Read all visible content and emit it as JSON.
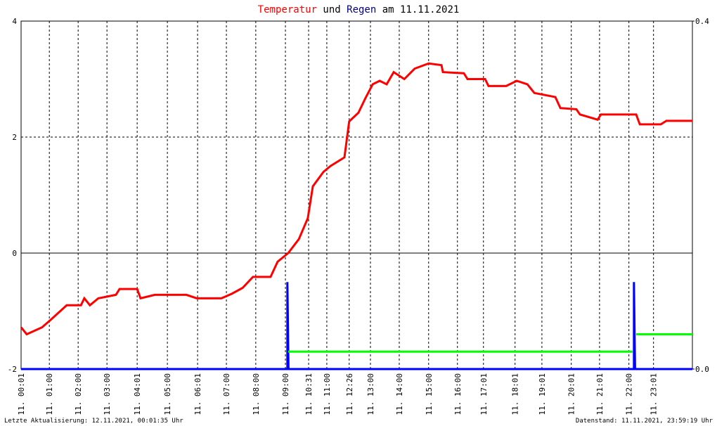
{
  "chart_data": {
    "type": "line",
    "title_parts": [
      "Temperatur",
      "und",
      "Regen",
      "am 11.11.2021"
    ],
    "title_colors": [
      "#ff0000",
      "#000000",
      "#000080",
      "#000000"
    ],
    "footer_left": "Letzte Aktualisierung: 12.11.2021, 00:01:35 Uhr",
    "footer_right": "Datenstand: 11.11.2021, 23:59:19 Uhr",
    "xlim": [
      0,
      24
    ],
    "xticks": [
      {
        "value": 0,
        "label": "11. 00:01"
      },
      {
        "value": 1.01,
        "label": "11. 01:00"
      },
      {
        "value": 2.04,
        "label": "11. 02:00"
      },
      {
        "value": 3.07,
        "label": "11. 03:00"
      },
      {
        "value": 4.15,
        "label": "11. 04:01"
      },
      {
        "value": 5.23,
        "label": "11. 05:00"
      },
      {
        "value": 6.31,
        "label": "11. 06:01"
      },
      {
        "value": 7.34,
        "label": "11. 07:00"
      },
      {
        "value": 8.39,
        "label": "11. 08:00"
      },
      {
        "value": 9.45,
        "label": "11. 09:00"
      },
      {
        "value": 10.28,
        "label": "11. 10:31"
      },
      {
        "value": 10.93,
        "label": "11. 11:00"
      },
      {
        "value": 11.73,
        "label": "11. 12:26"
      },
      {
        "value": 12.49,
        "label": "11. 13:00"
      },
      {
        "value": 13.52,
        "label": "11. 14:00"
      },
      {
        "value": 14.57,
        "label": "11. 15:00"
      },
      {
        "value": 15.6,
        "label": "11. 16:00"
      },
      {
        "value": 16.53,
        "label": "11. 17:01"
      },
      {
        "value": 17.66,
        "label": "11. 18:01"
      },
      {
        "value": 18.62,
        "label": "11. 19:01"
      },
      {
        "value": 19.67,
        "label": "11. 20:01"
      },
      {
        "value": 20.68,
        "label": "11. 21:01"
      },
      {
        "value": 21.73,
        "label": "11. 22:00"
      },
      {
        "value": 22.61,
        "label": "11. 23:01"
      }
    ],
    "ylim": [
      -2,
      4
    ],
    "yticks": [
      -2,
      0,
      2,
      4
    ],
    "y2lim": [
      0,
      0.4
    ],
    "y2ticks": [
      {
        "value": 0,
        "label": "0.0"
      },
      {
        "value": 0.4,
        "label": "0.4"
      }
    ],
    "grid": true,
    "series": [
      {
        "color": "#ff0000",
        "x": [
          0,
          0.2,
          0.75,
          1.06,
          1.63,
          2.14,
          2.26,
          2.46,
          2.76,
          3.39,
          3.52,
          4.15,
          4.27,
          4.78,
          5.91,
          6.28,
          7.16,
          7.54,
          7.92,
          8.29,
          8.92,
          9.17,
          9.55,
          9.93,
          10.25,
          10.43,
          10.81,
          11.06,
          11.56,
          11.73,
          12.06,
          12.31,
          12.57,
          12.82,
          13.07,
          13.32,
          13.7,
          14.07,
          14.57,
          15.03,
          15.08,
          15.83,
          15.96,
          16.59,
          16.71,
          17.34,
          17.72,
          18.1,
          18.35,
          19.1,
          19.28,
          19.85,
          19.98,
          20.61,
          20.73,
          21.99,
          22.12,
          22.87,
          23.07,
          24
        ],
        "values": [
          -1.28,
          -1.4,
          -1.28,
          -1.15,
          -0.9,
          -0.9,
          -0.78,
          -0.9,
          -0.78,
          -0.72,
          -0.62,
          -0.62,
          -0.78,
          -0.72,
          -0.72,
          -0.78,
          -0.78,
          -0.7,
          -0.6,
          -0.41,
          -0.41,
          -0.15,
          0,
          0.24,
          0.6,
          1.15,
          1.4,
          1.5,
          1.65,
          2.27,
          2.42,
          2.67,
          2.91,
          2.97,
          2.91,
          3.12,
          3.0,
          3.18,
          3.27,
          3.24,
          3.12,
          3.1,
          3.0,
          3.0,
          2.88,
          2.88,
          2.97,
          2.91,
          2.76,
          2.69,
          2.5,
          2.48,
          2.39,
          2.3,
          2.39,
          2.39,
          2.22,
          2.22,
          2.28,
          2.28
        ]
      },
      {
        "color": "#0000ff",
        "axis": "y2",
        "x": [
          0,
          9.52,
          9.52,
          9.56,
          21.91,
          21.91,
          21.95,
          24
        ],
        "values": [
          0,
          0,
          0.1,
          0,
          0,
          0.1,
          0,
          0
        ]
      },
      {
        "color": "#00ff00",
        "axis": "y2",
        "x": [
          9.55,
          21.86,
          21.9,
          21.99,
          24
        ],
        "values": [
          0.02,
          0.02,
          null,
          0.04,
          0.04
        ]
      }
    ]
  }
}
